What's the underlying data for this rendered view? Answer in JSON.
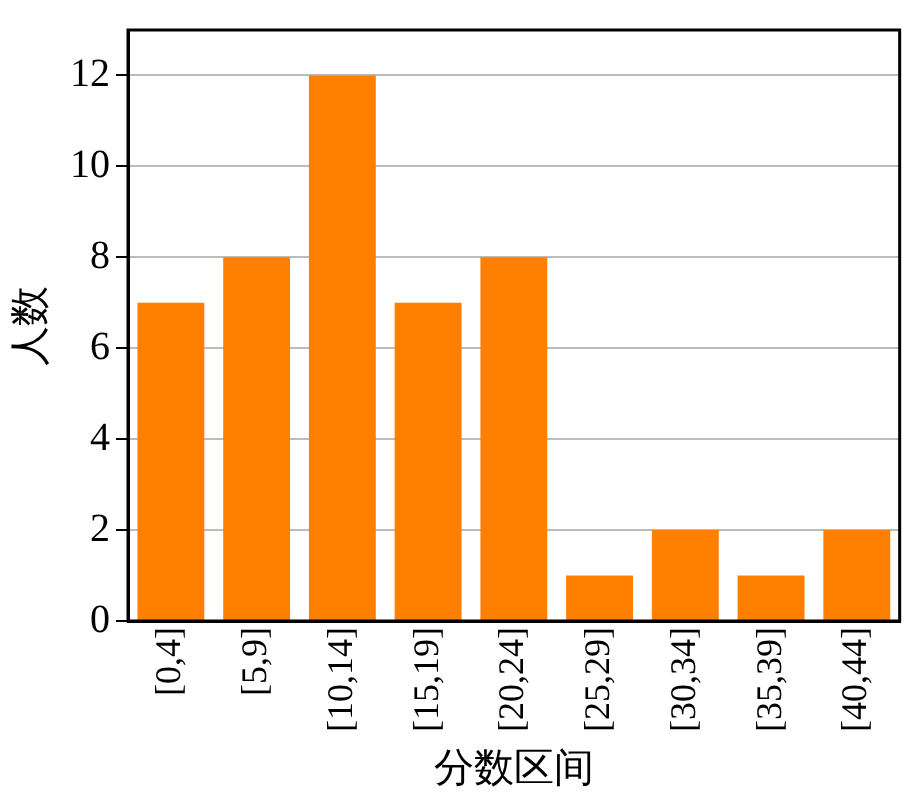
{
  "chart_data": {
    "type": "bar",
    "xlabel": "分数区间",
    "ylabel": "人数",
    "categories": [
      "[0,4]",
      "[5,9]",
      "[10,14]",
      "[15,19]",
      "[20,24]",
      "[25,29]",
      "[30,34]",
      "[35,39]",
      "[40,44]"
    ],
    "values": [
      7,
      8,
      12,
      7,
      8,
      1,
      2,
      1,
      2
    ],
    "color": "#ff8000",
    "ylim": [
      0,
      13
    ],
    "yticks": [
      0,
      2,
      4,
      6,
      8,
      10,
      12
    ],
    "grid": "y"
  }
}
